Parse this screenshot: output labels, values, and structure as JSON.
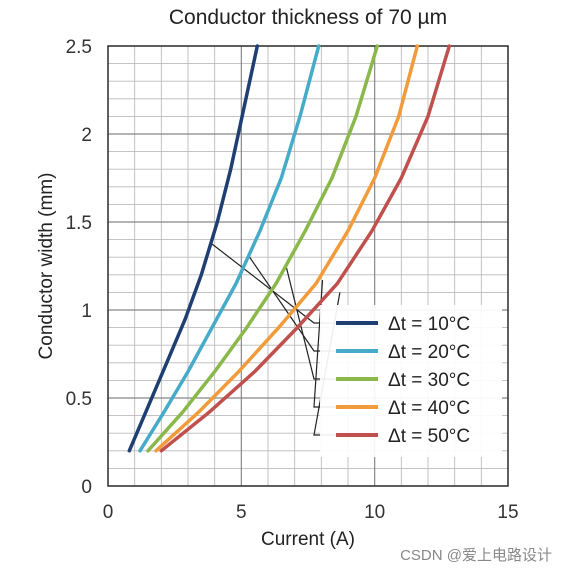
{
  "chart_data": {
    "type": "line",
    "title": "Conductor thickness of 70 µm",
    "xlabel": "Current (A)",
    "ylabel": "Conductor width (mm)",
    "xlim": [
      0,
      15
    ],
    "ylim": [
      0,
      2.5
    ],
    "x_ticks": [
      "0",
      "5",
      "10",
      "15"
    ],
    "y_ticks": [
      "0",
      "0.5",
      "1",
      "1.5",
      "2",
      "2.5"
    ],
    "grid": true,
    "legend_position": "bottom-right",
    "series": [
      {
        "name": "Δt = 10°C",
        "color": "#1f3f73",
        "x": [
          0.8,
          1.5,
          2.2,
          2.9,
          3.5,
          4.1,
          4.6,
          5.1,
          5.6
        ],
        "y": [
          0.2,
          0.45,
          0.7,
          0.95,
          1.2,
          1.5,
          1.8,
          2.15,
          2.5
        ]
      },
      {
        "name": "Δt = 20°C",
        "color": "#46abc8",
        "x": [
          1.2,
          2.1,
          3.0,
          3.9,
          4.8,
          5.7,
          6.5,
          7.2,
          7.9
        ],
        "y": [
          0.2,
          0.42,
          0.65,
          0.9,
          1.15,
          1.45,
          1.75,
          2.1,
          2.5
        ]
      },
      {
        "name": "Δt = 30°C",
        "color": "#8ab84a",
        "x": [
          1.5,
          2.8,
          4.0,
          5.2,
          6.3,
          7.4,
          8.4,
          9.3,
          10.1
        ],
        "y": [
          0.2,
          0.42,
          0.65,
          0.9,
          1.15,
          1.45,
          1.75,
          2.1,
          2.5
        ]
      },
      {
        "name": "Δt = 40°C",
        "color": "#f29b3b",
        "x": [
          1.8,
          3.4,
          4.9,
          6.4,
          7.8,
          9.0,
          10.0,
          10.9,
          11.6
        ],
        "y": [
          0.2,
          0.42,
          0.65,
          0.9,
          1.15,
          1.45,
          1.75,
          2.1,
          2.5
        ]
      },
      {
        "name": "Δt = 50°C",
        "color": "#c0504d",
        "x": [
          2.0,
          3.8,
          5.5,
          7.1,
          8.6,
          9.9,
          11.0,
          12.0,
          12.8
        ],
        "y": [
          0.2,
          0.42,
          0.65,
          0.9,
          1.15,
          1.45,
          1.75,
          2.1,
          2.5
        ]
      }
    ]
  },
  "watermark": "CSDN @爱上电路设计"
}
